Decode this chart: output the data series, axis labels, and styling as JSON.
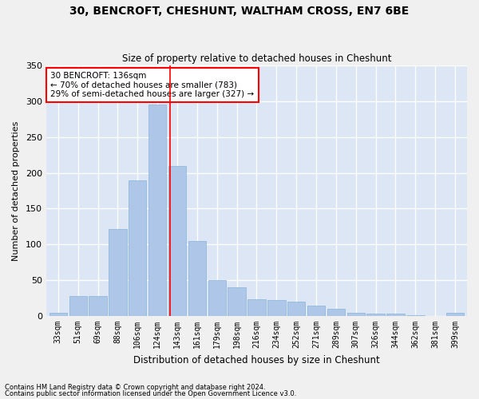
{
  "title": "30, BENCROFT, CHESHUNT, WALTHAM CROSS, EN7 6BE",
  "subtitle": "Size of property relative to detached houses in Cheshunt",
  "xlabel": "Distribution of detached houses by size in Cheshunt",
  "ylabel": "Number of detached properties",
  "categories": [
    "33sqm",
    "51sqm",
    "69sqm",
    "88sqm",
    "106sqm",
    "124sqm",
    "143sqm",
    "161sqm",
    "179sqm",
    "198sqm",
    "216sqm",
    "234sqm",
    "252sqm",
    "271sqm",
    "289sqm",
    "307sqm",
    "326sqm",
    "344sqm",
    "362sqm",
    "381sqm",
    "399sqm"
  ],
  "values": [
    4,
    28,
    28,
    122,
    190,
    295,
    210,
    105,
    50,
    40,
    23,
    22,
    20,
    15,
    10,
    4,
    3,
    3,
    1,
    0,
    4
  ],
  "bar_color": "#aec6e8",
  "bar_edge_color": "#8ab4d8",
  "marker_color": "#ff0000",
  "annotation_text": "30 BENCROFT: 136sqm\n← 70% of detached houses are smaller (783)\n29% of semi-detached houses are larger (327) →",
  "annotation_box_color": "#ffffff",
  "annotation_box_edge": "#ff0000",
  "bg_color": "#dce6f5",
  "fig_color": "#f0f0f0",
  "grid_color": "#ffffff",
  "footer1": "Contains HM Land Registry data © Crown copyright and database right 2024.",
  "footer2": "Contains public sector information licensed under the Open Government Licence v3.0.",
  "ylim": [
    0,
    350
  ],
  "yticks": [
    0,
    50,
    100,
    150,
    200,
    250,
    300,
    350
  ]
}
